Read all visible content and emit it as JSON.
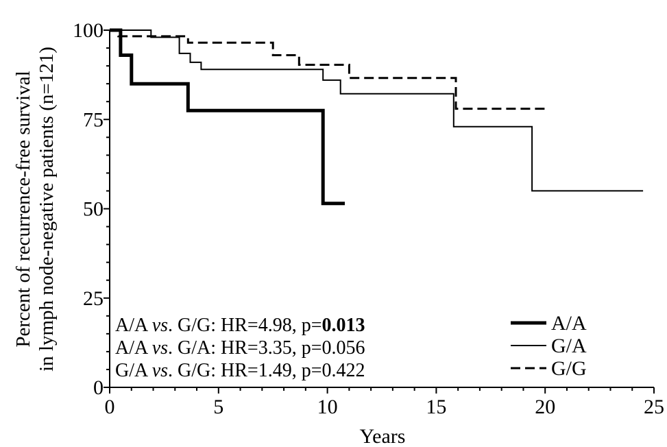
{
  "chart_data": {
    "type": "line",
    "title": "",
    "xlabel": "Years",
    "ylabel_line1": "Percent of recurrence-free survival",
    "ylabel_line2": "in lymph node-negative patients (n=121)",
    "xlim": [
      0,
      25
    ],
    "ylim": [
      0,
      100
    ],
    "x_ticks": [
      "0",
      "5",
      "10",
      "15",
      "20",
      "25"
    ],
    "y_ticks": [
      "0",
      "25",
      "50",
      "75",
      "100"
    ],
    "grid": false,
    "legend_position": "bottom-right",
    "series": [
      {
        "name": "A/A",
        "style": "thick-solid",
        "points": [
          [
            0,
            100
          ],
          [
            0.5,
            100
          ],
          [
            0.5,
            93
          ],
          [
            1.0,
            93
          ],
          [
            1.0,
            85
          ],
          [
            3.6,
            85
          ],
          [
            3.6,
            77.5
          ],
          [
            9.8,
            77.5
          ],
          [
            9.8,
            51.5
          ],
          [
            10.8,
            51.5
          ]
        ]
      },
      {
        "name": "G/A",
        "style": "thin-solid",
        "points": [
          [
            0,
            100
          ],
          [
            1.9,
            100
          ],
          [
            1.9,
            98
          ],
          [
            3.2,
            98
          ],
          [
            3.2,
            93.5
          ],
          [
            3.7,
            93.5
          ],
          [
            3.7,
            91
          ],
          [
            4.2,
            91
          ],
          [
            4.2,
            89
          ],
          [
            9.8,
            89
          ],
          [
            9.8,
            86
          ],
          [
            10.6,
            86
          ],
          [
            10.6,
            82.2
          ],
          [
            15.8,
            82.2
          ],
          [
            15.8,
            73
          ],
          [
            19.4,
            73
          ],
          [
            19.4,
            55
          ],
          [
            24.5,
            55
          ]
        ]
      },
      {
        "name": "G/G",
        "style": "dashed",
        "points": [
          [
            0,
            100
          ],
          [
            0.4,
            100
          ],
          [
            0.4,
            98.3
          ],
          [
            3.6,
            98.3
          ],
          [
            3.6,
            96.5
          ],
          [
            7.5,
            96.5
          ],
          [
            7.5,
            93
          ],
          [
            8.7,
            93
          ],
          [
            8.7,
            90.3
          ],
          [
            11.0,
            90.3
          ],
          [
            11.0,
            86.6
          ],
          [
            15.9,
            86.6
          ],
          [
            15.9,
            78
          ],
          [
            20.0,
            78
          ]
        ]
      }
    ],
    "annotations": [
      {
        "a": "A/A ",
        "vs": "vs",
        "b": ". G/G: HR=4.98, p=",
        "p": "0.013",
        "p_bold": true
      },
      {
        "a": "A/A ",
        "vs": "vs",
        "b": ". G/A: HR=3.35, p=",
        "p": "0.056",
        "p_bold": false
      },
      {
        "a": "G/A ",
        "vs": "vs",
        "b": ". G/G: HR=1.49, p=",
        "p": "0.422",
        "p_bold": false
      }
    ],
    "colors": {
      "line": "#000000",
      "background": "#ffffff"
    }
  }
}
